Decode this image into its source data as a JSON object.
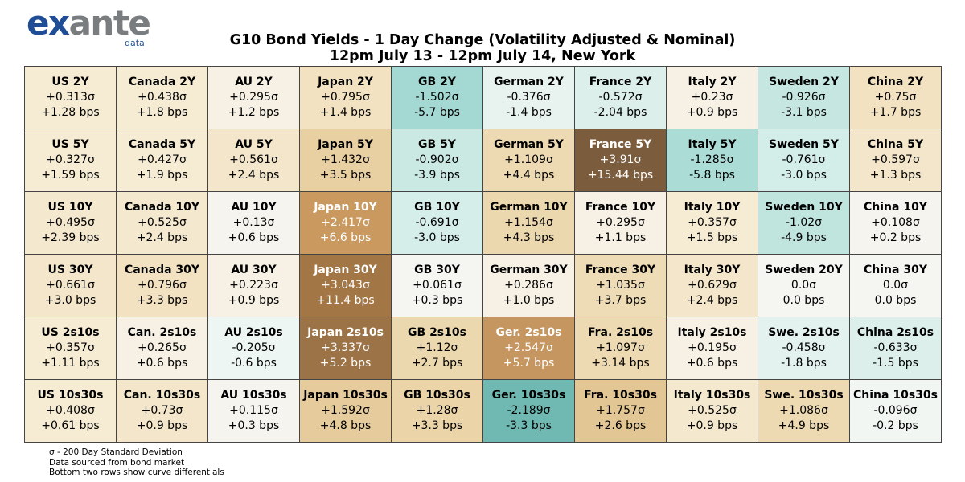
{
  "logo": {
    "brand_part1": "ex",
    "brand_part2": "ante",
    "sub": "data"
  },
  "title": {
    "line1": "G10 Bond Yields - 1 Day Change (Volatility Adjusted & Nominal)",
    "line2": "12pm July 13 - 12pm July 14, New York"
  },
  "colors": {
    "very_negative": "#6fb9b2",
    "negative": "#a9dcd6",
    "slightly_negative": "#d6ede9",
    "neutral_light": "#e8f3f0",
    "neutral": "#f5f5f2",
    "slightly_positive": "#f6ecd4",
    "positive": "#efdcb5",
    "more_positive": "#e3c792",
    "strong_positive": "#c9995f",
    "very_strong_positive": "#a37645",
    "extreme_positive": "#7b5c3c",
    "border": "#444444",
    "brand_blue": "#1f4e96",
    "brand_grey": "#7a7d80"
  },
  "chart_data": {
    "type": "table",
    "rows": [
      [
        {
          "name": "US 2Y",
          "sigma": "+0.313σ",
          "bps": "+1.28 bps",
          "bg": "#f6ecd4",
          "fg": "#000000"
        },
        {
          "name": "Canada 2Y",
          "sigma": "+0.438σ",
          "bps": "+1.8 bps",
          "bg": "#f6ecd4",
          "fg": "#000000"
        },
        {
          "name": "AU 2Y",
          "sigma": "+0.295σ",
          "bps": "+1.2 bps",
          "bg": "#f6f1e4",
          "fg": "#000000"
        },
        {
          "name": "Japan 2Y",
          "sigma": "+0.795σ",
          "bps": "+1.4 bps",
          "bg": "#f2e2c2",
          "fg": "#000000"
        },
        {
          "name": "GB 2Y",
          "sigma": "-1.502σ",
          "bps": "-5.7 bps",
          "bg": "#a3d9d2",
          "fg": "#000000"
        },
        {
          "name": "German 2Y",
          "sigma": "-0.376σ",
          "bps": "-1.4 bps",
          "bg": "#e8f3f0",
          "fg": "#000000"
        },
        {
          "name": "France 2Y",
          "sigma": "-0.572σ",
          "bps": "-2.04 bps",
          "bg": "#dcefeb",
          "fg": "#000000"
        },
        {
          "name": "Italy 2Y",
          "sigma": "+0.23σ",
          "bps": "+0.9 bps",
          "bg": "#f6f1e4",
          "fg": "#000000"
        },
        {
          "name": "Sweden 2Y",
          "sigma": "-0.926σ",
          "bps": "-3.1 bps",
          "bg": "#c6e7e1",
          "fg": "#000000"
        },
        {
          "name": "China 2Y",
          "sigma": "+0.75σ",
          "bps": "+1.7 bps",
          "bg": "#f2e2c2",
          "fg": "#000000"
        }
      ],
      [
        {
          "name": "US 5Y",
          "sigma": "+0.327σ",
          "bps": "+1.59 bps",
          "bg": "#f6ecd4",
          "fg": "#000000"
        },
        {
          "name": "Canada 5Y",
          "sigma": "+0.427σ",
          "bps": "+1.9 bps",
          "bg": "#f6ecd4",
          "fg": "#000000"
        },
        {
          "name": "AU 5Y",
          "sigma": "+0.561σ",
          "bps": "+2.4 bps",
          "bg": "#f3e6cb",
          "fg": "#000000"
        },
        {
          "name": "Japan 5Y",
          "sigma": "+1.432σ",
          "bps": "+3.5 bps",
          "bg": "#e8d0a3",
          "fg": "#000000"
        },
        {
          "name": "GB 5Y",
          "sigma": "-0.902σ",
          "bps": "-3.9 bps",
          "bg": "#cbe9e3",
          "fg": "#000000"
        },
        {
          "name": "German 5Y",
          "sigma": "+1.109σ",
          "bps": "+4.4 bps",
          "bg": "#eddab2",
          "fg": "#000000"
        },
        {
          "name": "France 5Y",
          "sigma": "+3.91σ",
          "bps": "+15.44 bps",
          "bg": "#7b5c3c",
          "fg": "#ffffff"
        },
        {
          "name": "Italy 5Y",
          "sigma": "-1.285σ",
          "bps": "-5.8 bps",
          "bg": "#abddd6",
          "fg": "#000000"
        },
        {
          "name": "Sweden 5Y",
          "sigma": "-0.761σ",
          "bps": "-3.0 bps",
          "bg": "#d3ede8",
          "fg": "#000000"
        },
        {
          "name": "China 5Y",
          "sigma": "+0.597σ",
          "bps": "+1.3 bps",
          "bg": "#f3e6cb",
          "fg": "#000000"
        }
      ],
      [
        {
          "name": "US 10Y",
          "sigma": "+0.495σ",
          "bps": "+2.39 bps",
          "bg": "#f4e8cf",
          "fg": "#000000"
        },
        {
          "name": "Canada 10Y",
          "sigma": "+0.525σ",
          "bps": "+2.4 bps",
          "bg": "#f4e8cf",
          "fg": "#000000"
        },
        {
          "name": "AU 10Y",
          "sigma": "+0.13σ",
          "bps": "+0.6 bps",
          "bg": "#f5f4ef",
          "fg": "#000000"
        },
        {
          "name": "Japan 10Y",
          "sigma": "+2.417σ",
          "bps": "+6.6 bps",
          "bg": "#c9995f",
          "fg": "#ffffff"
        },
        {
          "name": "GB 10Y",
          "sigma": "-0.691σ",
          "bps": "-3.0 bps",
          "bg": "#d6eeea",
          "fg": "#000000"
        },
        {
          "name": "German 10Y",
          "sigma": "+1.154σ",
          "bps": "+4.3 bps",
          "bg": "#ecd8af",
          "fg": "#000000"
        },
        {
          "name": "France 10Y",
          "sigma": "+0.295σ",
          "bps": "+1.1 bps",
          "bg": "#f6f1e4",
          "fg": "#000000"
        },
        {
          "name": "Italy 10Y",
          "sigma": "+0.357σ",
          "bps": "+1.5 bps",
          "bg": "#f6ecd4",
          "fg": "#000000"
        },
        {
          "name": "Sweden 10Y",
          "sigma": "-1.02σ",
          "bps": "-4.9 bps",
          "bg": "#c0e4de",
          "fg": "#000000"
        },
        {
          "name": "China 10Y",
          "sigma": "+0.108σ",
          "bps": "+0.2 bps",
          "bg": "#f5f4ef",
          "fg": "#000000"
        }
      ],
      [
        {
          "name": "US 30Y",
          "sigma": "+0.661σ",
          "bps": "+3.0 bps",
          "bg": "#f3e6cb",
          "fg": "#000000"
        },
        {
          "name": "Canada 30Y",
          "sigma": "+0.796σ",
          "bps": "+3.3 bps",
          "bg": "#f2e2c2",
          "fg": "#000000"
        },
        {
          "name": "AU 30Y",
          "sigma": "+0.223σ",
          "bps": "+0.9 bps",
          "bg": "#f6f1e4",
          "fg": "#000000"
        },
        {
          "name": "Japan 30Y",
          "sigma": "+3.043σ",
          "bps": "+11.4 bps",
          "bg": "#a37645",
          "fg": "#ffffff"
        },
        {
          "name": "GB 30Y",
          "sigma": "+0.061σ",
          "bps": "+0.3 bps",
          "bg": "#f5f5f2",
          "fg": "#000000"
        },
        {
          "name": "German 30Y",
          "sigma": "+0.286σ",
          "bps": "+1.0 bps",
          "bg": "#f6f1e4",
          "fg": "#000000"
        },
        {
          "name": "France 30Y",
          "sigma": "+1.035σ",
          "bps": "+3.7 bps",
          "bg": "#eedcb6",
          "fg": "#000000"
        },
        {
          "name": "Italy 30Y",
          "sigma": "+0.629σ",
          "bps": "+2.4 bps",
          "bg": "#f3e6cb",
          "fg": "#000000"
        },
        {
          "name": "Sweden 20Y",
          "sigma": "0.0σ",
          "bps": "0.0 bps",
          "bg": "#f5f5f2",
          "fg": "#000000"
        },
        {
          "name": "China 30Y",
          "sigma": "0.0σ",
          "bps": "0.0 bps",
          "bg": "#f5f5f2",
          "fg": "#000000"
        }
      ],
      [
        {
          "name": "US 2s10s",
          "sigma": "+0.357σ",
          "bps": "+1.11 bps",
          "bg": "#f6ecd4",
          "fg": "#000000"
        },
        {
          "name": "Can. 2s10s",
          "sigma": "+0.265σ",
          "bps": "+0.6 bps",
          "bg": "#f6f1e4",
          "fg": "#000000"
        },
        {
          "name": "AU 2s10s",
          "sigma": "-0.205σ",
          "bps": "-0.6 bps",
          "bg": "#eef6f3",
          "fg": "#000000"
        },
        {
          "name": "Japan 2s10s",
          "sigma": "+3.337σ",
          "bps": "+5.2 bps",
          "bg": "#9c7346",
          "fg": "#ffffff"
        },
        {
          "name": "GB 2s10s",
          "sigma": "+1.12σ",
          "bps": "+2.7 bps",
          "bg": "#ecd8af",
          "fg": "#000000"
        },
        {
          "name": "Ger. 2s10s",
          "sigma": "+2.547σ",
          "bps": "+5.7 bps",
          "bg": "#c59660",
          "fg": "#ffffff"
        },
        {
          "name": "Fra. 2s10s",
          "sigma": "+1.097σ",
          "bps": "+3.14 bps",
          "bg": "#eddab2",
          "fg": "#000000"
        },
        {
          "name": "Italy 2s10s",
          "sigma": "+0.195σ",
          "bps": "+0.6 bps",
          "bg": "#f6f1e4",
          "fg": "#000000"
        },
        {
          "name": "Swe. 2s10s",
          "sigma": "-0.458σ",
          "bps": "-1.8 bps",
          "bg": "#e3f2ee",
          "fg": "#000000"
        },
        {
          "name": "China 2s10s",
          "sigma": "-0.633σ",
          "bps": "-1.5 bps",
          "bg": "#dcefeb",
          "fg": "#000000"
        }
      ],
      [
        {
          "name": "US 10s30s",
          "sigma": "+0.408σ",
          "bps": "+0.61 bps",
          "bg": "#f6ecd4",
          "fg": "#000000"
        },
        {
          "name": "Can. 10s30s",
          "sigma": "+0.73σ",
          "bps": "+0.9 bps",
          "bg": "#f3e6cb",
          "fg": "#000000"
        },
        {
          "name": "AU 10s30s",
          "sigma": "+0.115σ",
          "bps": "+0.3 bps",
          "bg": "#f5f4ef",
          "fg": "#000000"
        },
        {
          "name": "Japan 10s30s",
          "sigma": "+1.592σ",
          "bps": "+4.8 bps",
          "bg": "#e6cc9c",
          "fg": "#000000"
        },
        {
          "name": "GB 10s30s",
          "sigma": "+1.28σ",
          "bps": "+3.3 bps",
          "bg": "#ead4a8",
          "fg": "#000000"
        },
        {
          "name": "Ger. 10s30s",
          "sigma": "-2.189σ",
          "bps": "-3.3 bps",
          "bg": "#6fb9b2",
          "fg": "#000000"
        },
        {
          "name": "Fra. 10s30s",
          "sigma": "+1.757σ",
          "bps": "+2.6 bps",
          "bg": "#e2c794",
          "fg": "#000000"
        },
        {
          "name": "Italy 10s30s",
          "sigma": "+0.525σ",
          "bps": "+0.9 bps",
          "bg": "#f4e8cf",
          "fg": "#000000"
        },
        {
          "name": "Swe. 10s30s",
          "sigma": "+1.086σ",
          "bps": "+4.9 bps",
          "bg": "#eddab2",
          "fg": "#000000"
        },
        {
          "name": "China 10s30s",
          "sigma": "-0.096σ",
          "bps": "-0.2 bps",
          "bg": "#f1f6f3",
          "fg": "#000000"
        }
      ]
    ]
  },
  "notes": {
    "sigma_def": "σ - 200 Day Standard Deviation",
    "source": "Data sourced from bond market",
    "rows_note": "Bottom two rows show curve differentials"
  }
}
